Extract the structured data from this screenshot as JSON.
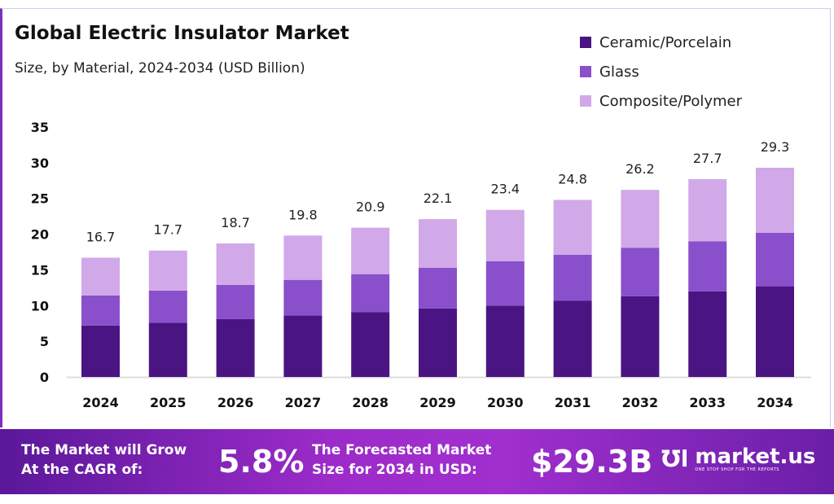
{
  "chart_data": {
    "type": "bar",
    "stacked": true,
    "title": "Global Electric Insulator Market",
    "subtitle": "Size, by Material, 2024-2034 (USD Billion)",
    "categories": [
      "2024",
      "2025",
      "2026",
      "2027",
      "2028",
      "2029",
      "2030",
      "2031",
      "2032",
      "2033",
      "2034"
    ],
    "series": [
      {
        "name": "Ceramic/Porcelain",
        "color": "#4a1582",
        "values": [
          7.2,
          7.6,
          8.1,
          8.6,
          9.1,
          9.6,
          10.0,
          10.7,
          11.3,
          12.0,
          12.7
        ]
      },
      {
        "name": "Glass",
        "color": "#8a4fcb",
        "values": [
          4.2,
          4.5,
          4.8,
          5.0,
          5.3,
          5.7,
          6.2,
          6.4,
          6.8,
          7.0,
          7.5
        ]
      },
      {
        "name": "Composite/Polymer",
        "color": "#d1a8e8",
        "values": [
          5.3,
          5.6,
          5.8,
          6.2,
          6.5,
          6.8,
          7.2,
          7.7,
          8.1,
          8.7,
          9.1
        ]
      }
    ],
    "totals": [
      "16.7",
      "17.7",
      "18.7",
      "19.8",
      "20.9",
      "22.1",
      "23.4",
      "24.8",
      "26.2",
      "27.7",
      "29.3"
    ],
    "ylim": [
      0,
      35
    ],
    "yticks": [
      "0",
      "5",
      "10",
      "15",
      "20",
      "25",
      "30",
      "35"
    ],
    "grid": false,
    "legend_position": "top-right"
  },
  "banner": {
    "cagr_label_1": "The Market will Grow",
    "cagr_label_2": "At the CAGR of:",
    "cagr_value": "5.8%",
    "forecast_label_1": "The Forecasted Market",
    "forecast_label_2": "Size for 2034 in USD:",
    "forecast_value": "$29.3B",
    "logo_name": "market.us",
    "logo_tagline": "ONE STOP SHOP FOR THE REPORTS"
  }
}
